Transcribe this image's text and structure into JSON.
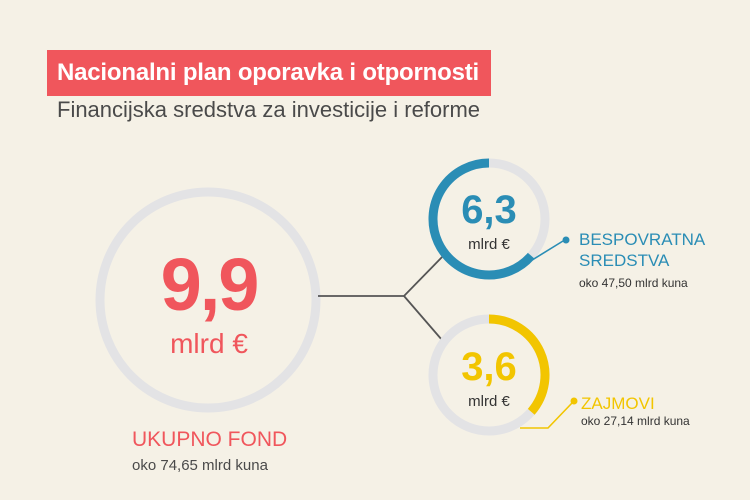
{
  "header": {
    "title": "Nacionalni plan oporavka i otpornosti",
    "subtitle": "Financijska sredstva za investicije i reforme"
  },
  "colors": {
    "background": "#f5f1e6",
    "accent_red": "#f0565c",
    "accent_blue": "#2a8db5",
    "accent_yellow": "#f2c500",
    "ring_track": "#e3e3e5",
    "connector": "#555555"
  },
  "chart_data": {
    "type": "pie",
    "unit": "mlrd €",
    "total": {
      "value": 9.9,
      "display": "9,9",
      "unit": "mlrd €",
      "label": "UKUPNO FOND",
      "sub": "oko 74,65 mlrd kuna"
    },
    "slices": [
      {
        "key": "grants",
        "value": 6.3,
        "display": "6,3",
        "unit": "mlrd €",
        "label_lines": [
          "BESPOVRATNA",
          "SREDSTVA"
        ],
        "sub": "oko 47,50 mlrd kuna",
        "color": "#2a8db5",
        "fraction": 0.636
      },
      {
        "key": "loans",
        "value": 3.6,
        "display": "3,6",
        "unit": "mlrd €",
        "label_lines": [
          "ZAJMOVI"
        ],
        "sub": "oko 27,14 mlrd kuna",
        "color": "#f2c500",
        "fraction": 0.364
      }
    ]
  }
}
